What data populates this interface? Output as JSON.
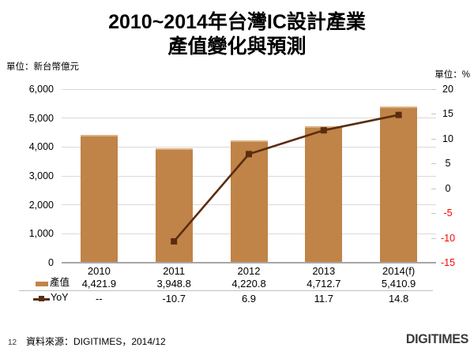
{
  "title": {
    "line1": "2010~2014年台灣IC設計產業",
    "line2": "產值變化與預測"
  },
  "units": {
    "left": "單位：新台幣億元",
    "right": "單位：%"
  },
  "chart_data": {
    "type": "combo-bar-line",
    "title": "2010~2014年台灣IC設計產業 產值變化與預測",
    "categories": [
      "2010",
      "2011",
      "2012",
      "2013",
      "2014(f)"
    ],
    "series": [
      {
        "name": "產值",
        "type": "bar",
        "axis": "left",
        "values": [
          4421.9,
          3948.8,
          4220.8,
          4712.7,
          5410.9
        ],
        "values_display": [
          "4,421.9",
          "3,948.8",
          "4,220.8",
          "4,712.7",
          "5,410.9"
        ]
      },
      {
        "name": "YoY",
        "type": "line",
        "axis": "right",
        "values": [
          null,
          -10.7,
          6.9,
          11.7,
          14.8
        ],
        "values_display": [
          "--",
          "-10.7",
          "6.9",
          "11.7",
          "14.8"
        ]
      }
    ],
    "left_axis": {
      "label": "單位：新台幣億元",
      "range": [
        0,
        6000
      ],
      "ticks": [
        0,
        1000,
        2000,
        3000,
        4000,
        5000,
        6000
      ],
      "tick_labels": [
        "0",
        "1,000",
        "2,000",
        "3,000",
        "4,000",
        "5,000",
        "6,000"
      ]
    },
    "right_axis": {
      "label": "單位：%",
      "range": [
        -15,
        20
      ],
      "ticks": [
        20,
        15,
        10,
        5,
        0,
        -5,
        -10,
        -15
      ],
      "tick_labels": [
        "20",
        "15",
        "10",
        "5",
        "0",
        "-5",
        "-10",
        "-15"
      ]
    },
    "grid": true,
    "legend_position": "bottom-table"
  },
  "colors": {
    "bar": "#C08348",
    "bar_top_edge": "#DCB183",
    "line": "#5B2D0E",
    "grid": "#D9D9D9",
    "axis_line": "#A6A6A6",
    "separator": "#BFBFBF",
    "negative_tick": "#FF0000",
    "logo": "#3A3A3A"
  },
  "footer": {
    "page_number": "12",
    "source": "資料來源：DIGITIMES，2014/12",
    "logo_text": "DIGITIMES"
  }
}
